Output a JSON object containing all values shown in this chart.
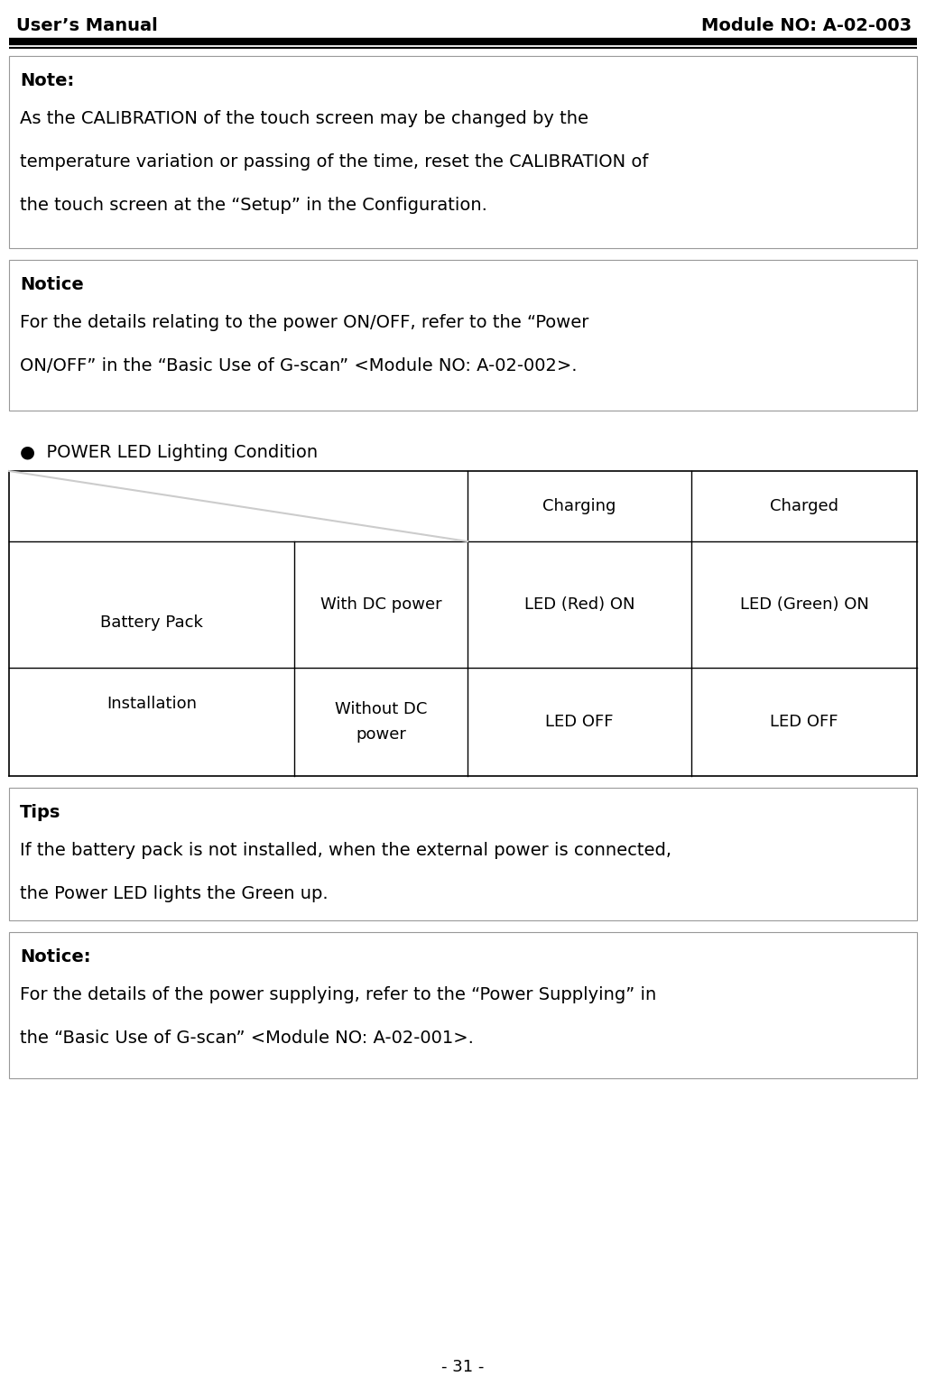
{
  "title_left": "User’s Manual",
  "title_right": "Module NO: A-02-003",
  "page_number": "- 31 -",
  "bg_color": "#ffffff",
  "note_label": "Note:",
  "note_lines": [
    "As the CALIBRATION of the touch screen may be changed by the",
    "temperature variation or passing of the time, reset the CALIBRATION of",
    "the touch screen at the “Setup” in the Configuration."
  ],
  "notice1_label": "Notice",
  "notice1_lines": [
    "For the details relating to the power ON/OFF, refer to the “Power",
    "ON/OFF” in the “Basic Use of G-scan” <Module NO: A-02-002>."
  ],
  "bullet_heading": "●  POWER LED Lighting Condition",
  "tbl_hdr_charging": "Charging",
  "tbl_hdr_charged": "Charged",
  "tbl_r1c0a": "Battery Pack",
  "tbl_r1c0b": "Installation",
  "tbl_r1c1": "With DC power",
  "tbl_r1c2": "LED (Red) ON",
  "tbl_r1c3": "LED (Green) ON",
  "tbl_r2c1a": "Without DC",
  "tbl_r2c1b": "power",
  "tbl_r2c2": "LED OFF",
  "tbl_r2c3": "LED OFF",
  "tips_label": "Tips",
  "tips_lines": [
    "If the battery pack is not installed, when the external power is connected,",
    "the Power LED lights the Green up."
  ],
  "notice2_label": "Notice:",
  "notice2_lines": [
    "For the details of the power supplying, refer to the “Power Supplying” in",
    "the “Basic Use of G-scan” <Module NO: A-02-001>."
  ],
  "header_fs": 14,
  "label_fs": 14,
  "body_fs": 14,
  "table_fs": 13,
  "bullet_fs": 14,
  "page_fs": 13
}
